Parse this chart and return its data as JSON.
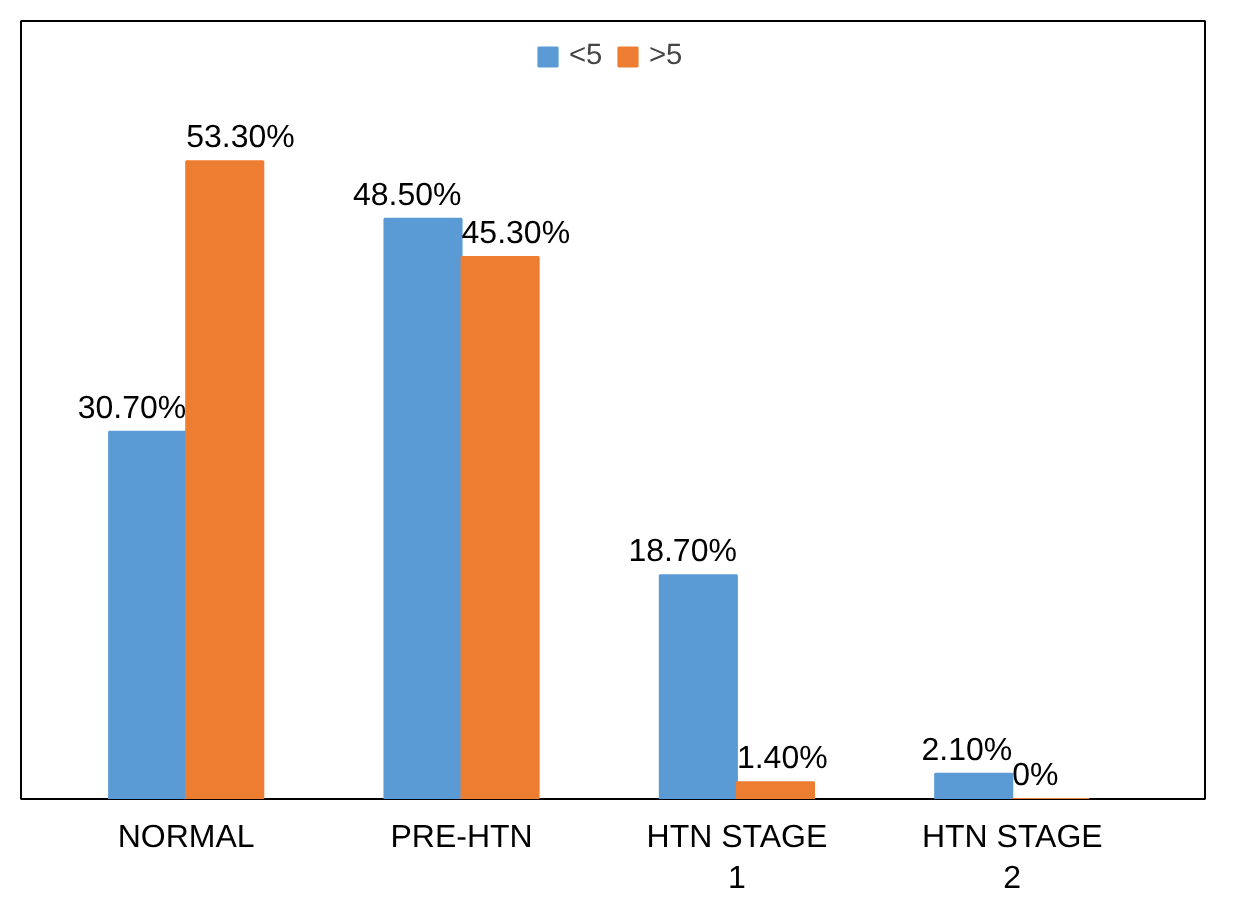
{
  "chart_data": {
    "type": "bar",
    "categories": [
      "NORMAL",
      "PRE-HTN",
      "HTN STAGE 1",
      "HTN STAGE 2"
    ],
    "series": [
      {
        "name": "<5",
        "color": "#5b9bd5",
        "values": [
          30.7,
          48.5,
          18.7,
          2.1
        ],
        "value_labels": [
          "30.70%",
          "48.50%",
          "18.70%",
          "2.10%"
        ]
      },
      {
        "name": ">5",
        "color": "#ed7d31",
        "values": [
          53.3,
          45.3,
          1.4,
          0
        ],
        "value_labels": [
          "53.30%",
          "45.30%",
          "1.40%",
          "0%"
        ]
      }
    ],
    "legend": "top"
  }
}
